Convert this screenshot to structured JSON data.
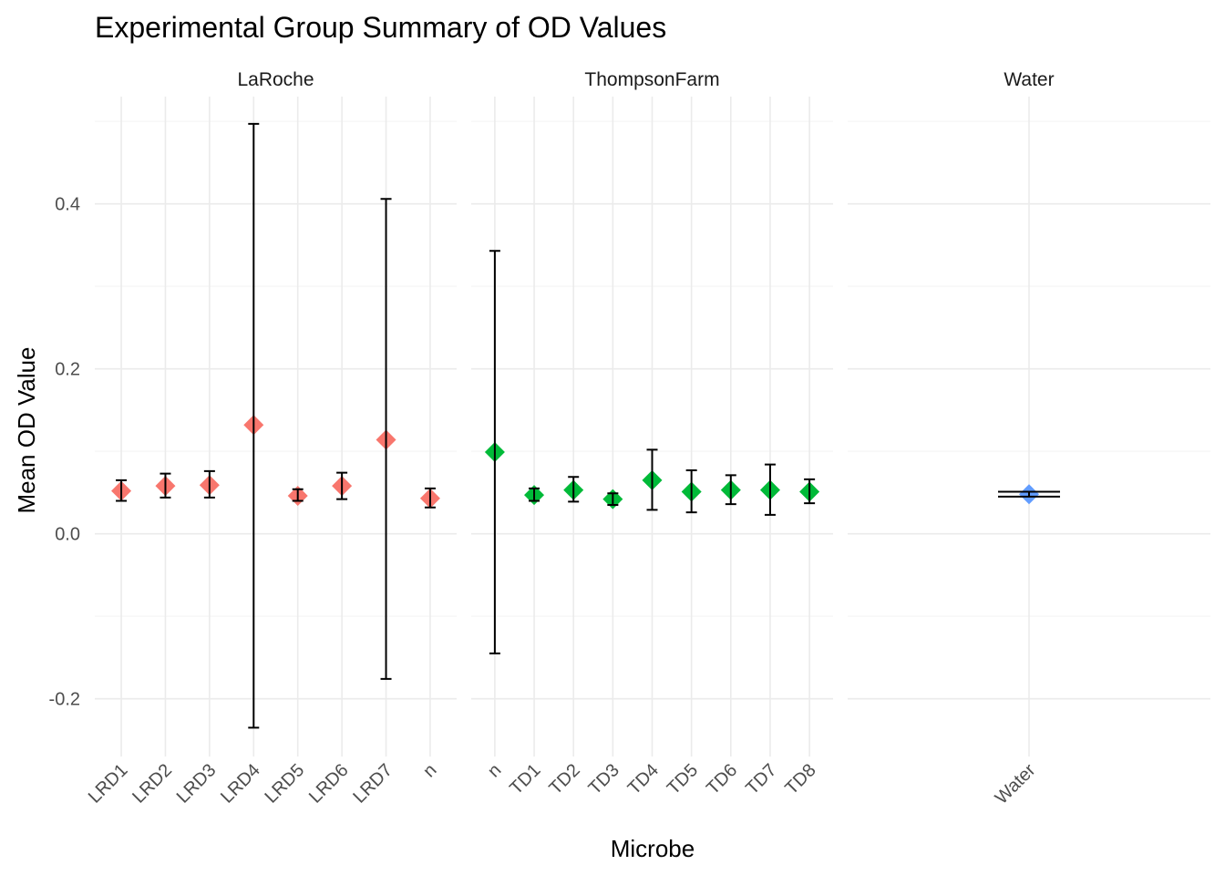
{
  "chart_data": {
    "type": "scatter",
    "title": "Experimental Group Summary of OD Values",
    "xlabel": "Microbe",
    "ylabel": "Mean OD Value",
    "ylim": [
      -0.27,
      0.53
    ],
    "yticks": [
      -0.2,
      0.0,
      0.2,
      0.4
    ],
    "ytick_labels": [
      "-0.2",
      "0.0",
      "0.2",
      "0.4"
    ],
    "grid": true,
    "legend": "none",
    "colors": {
      "LaRoche": "#F8766D",
      "ThompsonFarm": "#00BA38",
      "Water": "#619CFF"
    },
    "facets": [
      {
        "name": "LaRoche",
        "categories": [
          "LRD1",
          "LRD2",
          "LRD3",
          "LRD4",
          "LRD5",
          "LRD6",
          "LRD7",
          "n"
        ],
        "mean": [
          0.052,
          0.058,
          0.059,
          0.132,
          0.046,
          0.058,
          0.114,
          0.043
        ],
        "lower": [
          0.04,
          0.044,
          0.044,
          -0.235,
          0.04,
          0.042,
          -0.176,
          0.032
        ],
        "upper": [
          0.065,
          0.073,
          0.076,
          0.497,
          0.054,
          0.074,
          0.406,
          0.055
        ]
      },
      {
        "name": "ThompsonFarm",
        "categories": [
          "n",
          "TD1",
          "TD2",
          "TD3",
          "TD4",
          "TD5",
          "TD6",
          "TD7",
          "TD8"
        ],
        "mean": [
          0.099,
          0.047,
          0.053,
          0.042,
          0.065,
          0.051,
          0.053,
          0.053,
          0.051
        ],
        "lower": [
          -0.145,
          0.04,
          0.039,
          0.035,
          0.029,
          0.026,
          0.036,
          0.023,
          0.037
        ],
        "upper": [
          0.343,
          0.055,
          0.069,
          0.049,
          0.102,
          0.077,
          0.071,
          0.084,
          0.066
        ]
      },
      {
        "name": "Water",
        "categories": [
          "Water"
        ],
        "mean": [
          0.048
        ],
        "lower": [
          0.045
        ],
        "upper": [
          0.051
        ]
      }
    ]
  }
}
